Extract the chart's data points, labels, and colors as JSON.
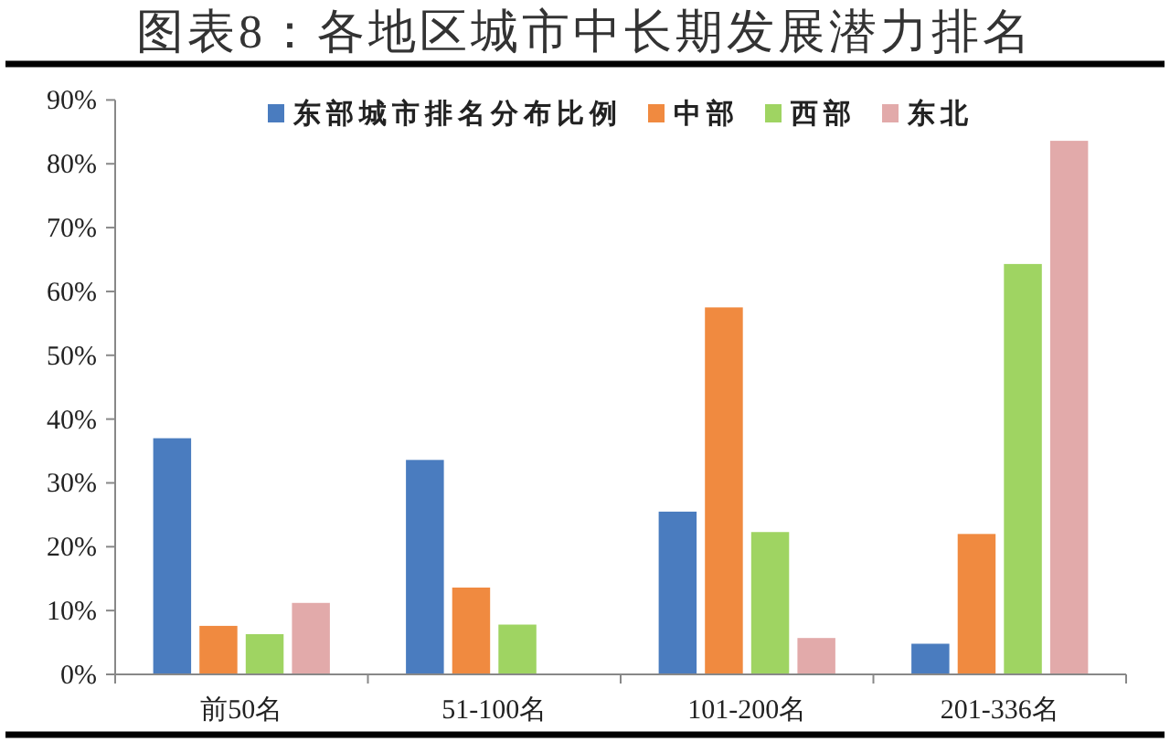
{
  "chart_data": {
    "type": "bar",
    "title": "图表8：各地区城市中长期发展潜力排名",
    "categories": [
      "前50名",
      "51-100名",
      "101-200名",
      "201-336名"
    ],
    "series": [
      {
        "name": "东部城市排名分布比例",
        "color": "#4a7cbf",
        "values": [
          37,
          33.6,
          25.5,
          4.8
        ]
      },
      {
        "name": "中部",
        "color": "#f08a40",
        "values": [
          7.6,
          13.6,
          57.5,
          22
        ]
      },
      {
        "name": "西部",
        "color": "#9fd462",
        "values": [
          6.3,
          7.8,
          22.3,
          64.3
        ]
      },
      {
        "name": "东北",
        "color": "#e2aaaa",
        "values": [
          11.2,
          0,
          5.7,
          83.6
        ]
      }
    ],
    "ylim": [
      0,
      90
    ],
    "yticks": [
      {
        "value": 0,
        "label": "0%"
      },
      {
        "value": 10,
        "label": "10%"
      },
      {
        "value": 20,
        "label": "20%"
      },
      {
        "value": 30,
        "label": "30%"
      },
      {
        "value": 40,
        "label": "40%"
      },
      {
        "value": 50,
        "label": "50%"
      },
      {
        "value": 60,
        "label": "60%"
      },
      {
        "value": 70,
        "label": "70%"
      },
      {
        "value": 80,
        "label": "80%"
      },
      {
        "value": 90,
        "label": "90%"
      }
    ],
    "grid": false,
    "legend": "top"
  }
}
